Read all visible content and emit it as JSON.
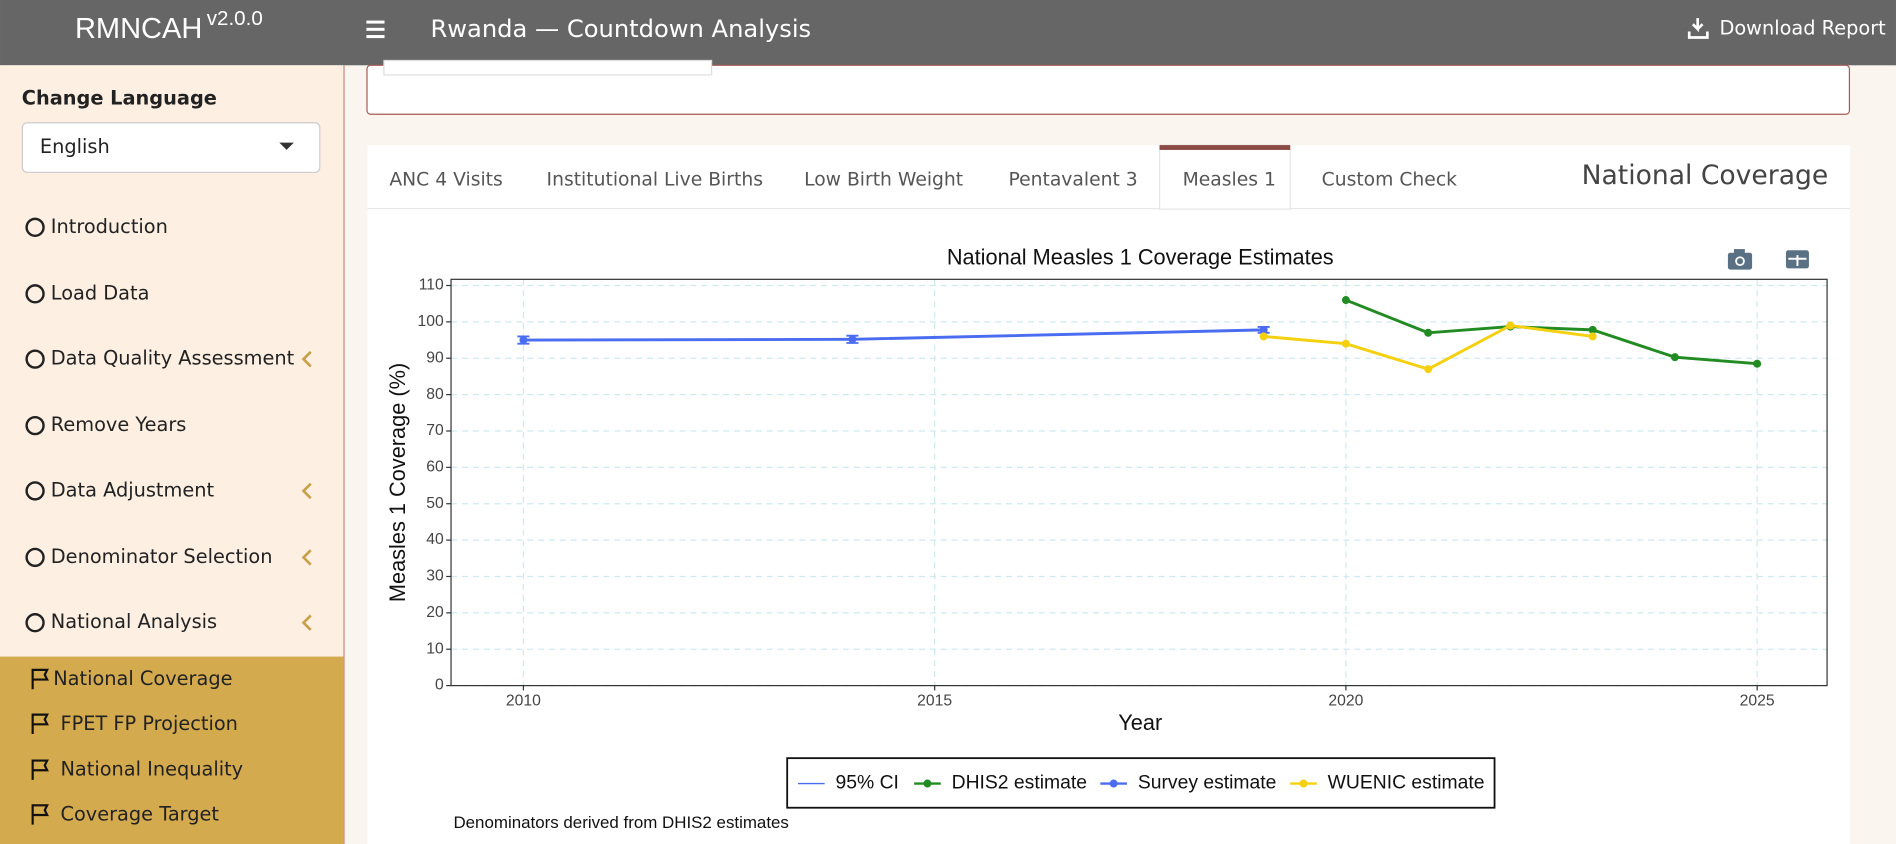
{
  "header": {
    "brand": "RMNCAH",
    "version": "v2.0.0",
    "title": "Rwanda — Countdown Analysis",
    "download": "Download Report"
  },
  "sidebar": {
    "language_label": "Change Language",
    "language": "English",
    "menu": [
      "Introduction",
      "Load Data",
      "Data Quality Assessment",
      "Remove Years",
      "Data Adjustment",
      "Denominator Selection",
      "National Analysis"
    ],
    "submenu": [
      "National Coverage",
      "FPET FP Projection",
      "National Inequality",
      "Coverage Target"
    ]
  },
  "tabs": [
    "ANC 4 Visits",
    "Institutional Live Births",
    "Low Birth Weight",
    "Pentavalent 3",
    "Measles 1",
    "Custom Check"
  ],
  "section_title": "National Coverage",
  "chart_data": {
    "type": "line",
    "title": "National Measles 1 Coverage Estimates",
    "x_label": "Year",
    "y_label": "Measles 1 Coverage (%)",
    "xlim": [
      2009.12,
      2025.85
    ],
    "xticks": [
      2010,
      2015,
      2020,
      2025
    ],
    "ylim": [
      0,
      111.7
    ],
    "yticks": [
      0,
      10,
      20,
      30,
      40,
      50,
      60,
      70,
      80,
      90,
      100,
      110
    ],
    "grid": true,
    "series": [
      {
        "name": "95% CI",
        "color": "#4a6cf0",
        "x": [
          2010,
          2014,
          2019
        ],
        "lower": [
          94,
          94.2,
          97
        ],
        "upper": [
          96,
          96.2,
          98.6
        ]
      },
      {
        "name": "DHIS2 estimate",
        "color": "#228b22",
        "x": [
          2020,
          2021,
          2022,
          2023,
          2024,
          2025
        ],
        "values": [
          106,
          97,
          98.7,
          97.8,
          90.3,
          88.5
        ]
      },
      {
        "name": "Survey estimate",
        "color": "#4a6cf0",
        "x": [
          2010,
          2014,
          2019
        ],
        "values": [
          95,
          95.2,
          97.8
        ]
      },
      {
        "name": "WUENIC estimate",
        "color": "#f5d00f",
        "x": [
          2019,
          2020,
          2021,
          2022,
          2023
        ],
        "values": [
          96,
          94,
          87,
          99,
          96
        ]
      }
    ],
    "caption": "Denominators derived from DHIS2 estimates"
  }
}
